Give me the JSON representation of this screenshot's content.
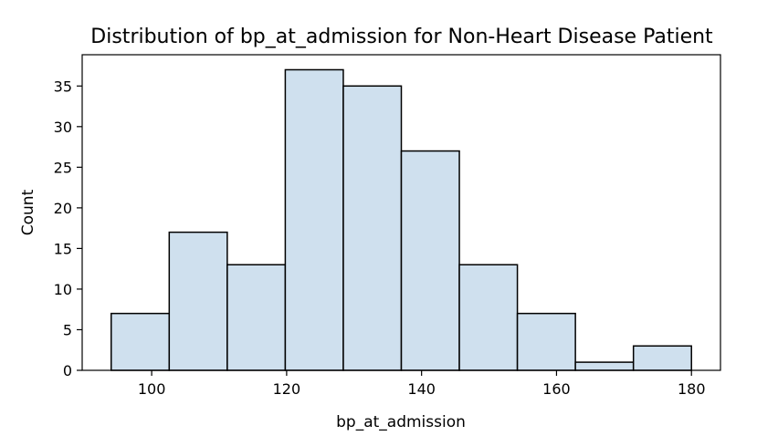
{
  "chart_data": {
    "type": "bar",
    "title": "Distribution of bp_at_admission for Non-Heart Disease Patient",
    "xlabel": "bp_at_admission",
    "ylabel": "Count",
    "bins": [
      {
        "x0": 94.0,
        "x1": 102.6,
        "count": 7
      },
      {
        "x0": 102.6,
        "x1": 111.2,
        "count": 17
      },
      {
        "x0": 111.2,
        "x1": 119.8,
        "count": 13
      },
      {
        "x0": 119.8,
        "x1": 128.4,
        "count": 37
      },
      {
        "x0": 128.4,
        "x1": 137.0,
        "count": 35
      },
      {
        "x0": 137.0,
        "x1": 145.6,
        "count": 27
      },
      {
        "x0": 145.6,
        "x1": 154.2,
        "count": 13
      },
      {
        "x0": 154.2,
        "x1": 162.8,
        "count": 7
      },
      {
        "x0": 162.8,
        "x1": 171.4,
        "count": 1
      },
      {
        "x0": 171.4,
        "x1": 180.0,
        "count": 3
      }
    ],
    "xticks": [
      "100",
      "120",
      "140",
      "160",
      "180"
    ],
    "yticks": [
      "0",
      "5",
      "10",
      "15",
      "20",
      "25",
      "30",
      "35"
    ],
    "xlim": [
      89.7,
      184.3
    ],
    "ylim": [
      0,
      38.85
    ],
    "grid": false,
    "colors": {
      "bar_fill": "#cfe0ee",
      "bar_edge": "#000000"
    }
  }
}
